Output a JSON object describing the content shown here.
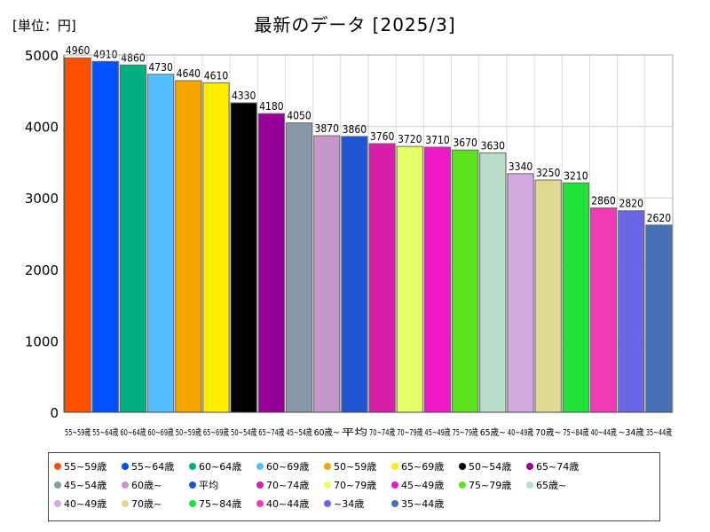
{
  "header": {
    "unit_label": "[単位：円]",
    "title": "最新のデータ [2025/3]"
  },
  "chart_data": {
    "type": "bar",
    "title": "最新のデータ [2025/3]",
    "unit": "[単位：円]",
    "xlabel": "",
    "ylabel": "",
    "ylim": [
      0,
      5000
    ],
    "yticks": [
      0,
      1000,
      2000,
      3000,
      4000,
      5000
    ],
    "grid": true,
    "legend_position": "bottom",
    "categories": [
      "55~59歳",
      "55~64歳",
      "60~64歳",
      "60~69歳",
      "50~59歳",
      "65~69歳",
      "50~54歳",
      "65~74歳",
      "45~54歳",
      "60歳~",
      "平均",
      "70~74歳",
      "70~79歳",
      "45~49歳",
      "75~79歳",
      "65歳~",
      "40~49歳",
      "70歳~",
      "75~84歳",
      "40~44歳",
      "~34歳",
      "35~44歳"
    ],
    "tick_labels": [
      "55~59歳",
      "55~64歳",
      "60~64歳",
      "60~69歳",
      "50~59歳",
      "65~69歳",
      "50~54歳",
      "65~74歳",
      "45~54歳",
      "60歳~",
      "平均",
      "70~74歳",
      "70~79歳",
      "45~49歳",
      "75~79歳",
      "65歳~",
      "40~49歳",
      "70歳~",
      "75~84歳",
      "40~44歳",
      "~34歳",
      "35~44歳"
    ],
    "values": [
      4960,
      4910,
      4860,
      4730,
      4640,
      4610,
      4330,
      4180,
      4050,
      3870,
      3860,
      3760,
      3720,
      3710,
      3670,
      3630,
      3340,
      3250,
      3210,
      2860,
      2820,
      2620
    ],
    "colors": [
      "#ff5000",
      "#0050ff",
      "#00b080",
      "#55c0ff",
      "#f5a500",
      "#ffee00",
      "#000000",
      "#990099",
      "#8898a8",
      "#c398c8",
      "#1f55d2",
      "#d81ea8",
      "#e6ff66",
      "#ee18c8",
      "#5ce31e",
      "#b8dcc8",
      "#d2a8e0",
      "#e2d896",
      "#1fe33a",
      "#f03cb4",
      "#6a66e6",
      "#4670b4"
    ]
  }
}
